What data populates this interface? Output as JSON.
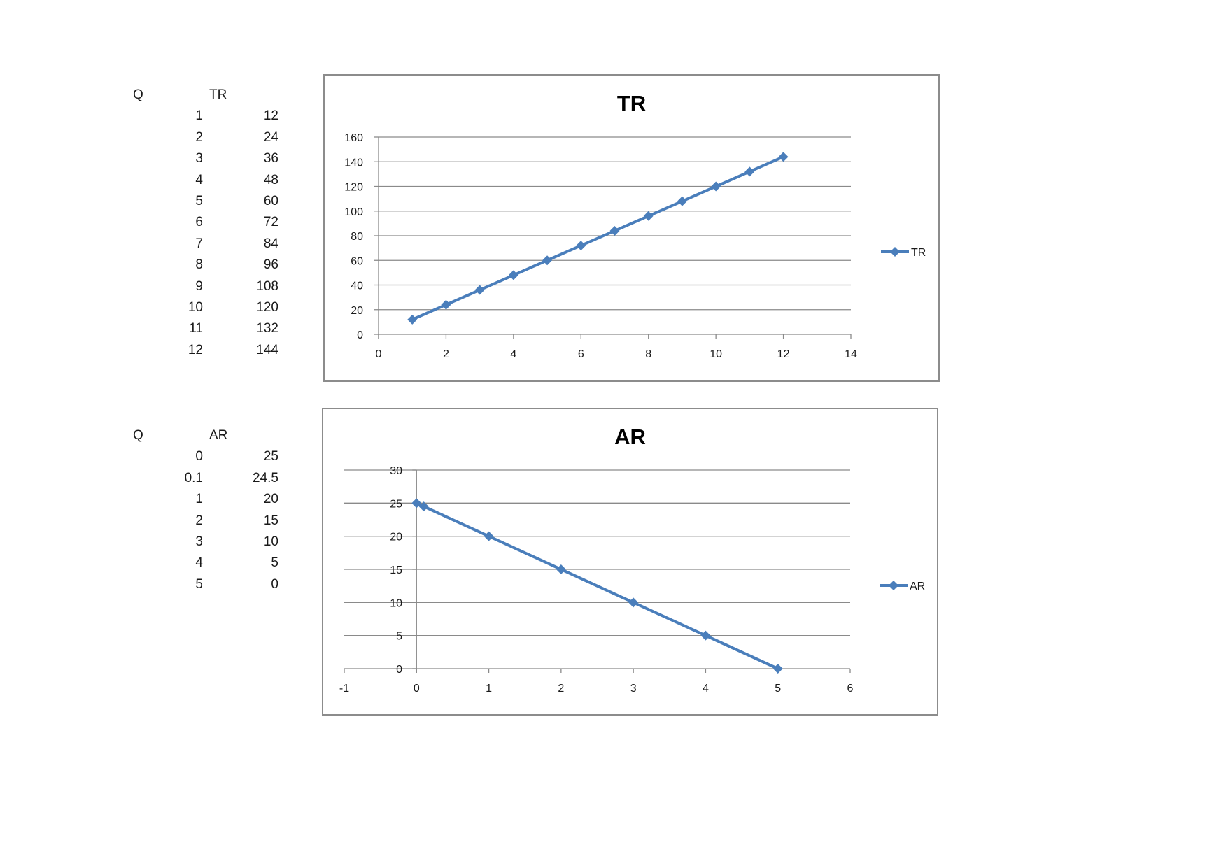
{
  "tables": [
    {
      "headers": [
        "Q",
        "TR"
      ],
      "rows": [
        [
          "1",
          "12"
        ],
        [
          "2",
          "24"
        ],
        [
          "3",
          "36"
        ],
        [
          "4",
          "48"
        ],
        [
          "5",
          "60"
        ],
        [
          "6",
          "72"
        ],
        [
          "7",
          "84"
        ],
        [
          "8",
          "96"
        ],
        [
          "9",
          "108"
        ],
        [
          "10",
          "120"
        ],
        [
          "11",
          "132"
        ],
        [
          "12",
          "144"
        ]
      ]
    },
    {
      "headers": [
        "Q",
        "AR"
      ],
      "rows": [
        [
          "0",
          "25"
        ],
        [
          "0.1",
          "24.5"
        ],
        [
          "1",
          "20"
        ],
        [
          "2",
          "15"
        ],
        [
          "3",
          "10"
        ],
        [
          "4",
          "5"
        ],
        [
          "5",
          "0"
        ]
      ]
    }
  ],
  "chart_data": [
    {
      "type": "scatter",
      "mode": "lines+markers",
      "title": "TR",
      "xlabel": "",
      "ylabel": "",
      "xlim": [
        0,
        14
      ],
      "ylim": [
        0,
        160
      ],
      "xticks": [
        0,
        2,
        4,
        6,
        8,
        10,
        12,
        14
      ],
      "yticks": [
        0,
        20,
        40,
        60,
        80,
        100,
        120,
        140,
        160
      ],
      "grid": "horizontal",
      "legend": "right",
      "series": [
        {
          "name": "TR",
          "color": "#4a7ebb",
          "marker": "diamond",
          "x": [
            1,
            2,
            3,
            4,
            5,
            6,
            7,
            8,
            9,
            10,
            11,
            12
          ],
          "y": [
            12,
            24,
            36,
            48,
            60,
            72,
            84,
            96,
            108,
            120,
            132,
            144
          ]
        }
      ]
    },
    {
      "type": "scatter",
      "mode": "lines+markers",
      "title": "AR",
      "xlabel": "",
      "ylabel": "",
      "xlim": [
        -1,
        6
      ],
      "ylim": [
        0,
        30
      ],
      "xticks": [
        -1,
        0,
        1,
        2,
        3,
        4,
        5,
        6
      ],
      "yticks": [
        0,
        5,
        10,
        15,
        20,
        25,
        30
      ],
      "grid": "horizontal",
      "legend": "right",
      "series": [
        {
          "name": "AR",
          "color": "#4a7ebb",
          "marker": "diamond",
          "x": [
            0,
            0.1,
            1,
            2,
            3,
            4,
            5
          ],
          "y": [
            25,
            24.5,
            20,
            15,
            10,
            5,
            0
          ]
        }
      ]
    }
  ]
}
